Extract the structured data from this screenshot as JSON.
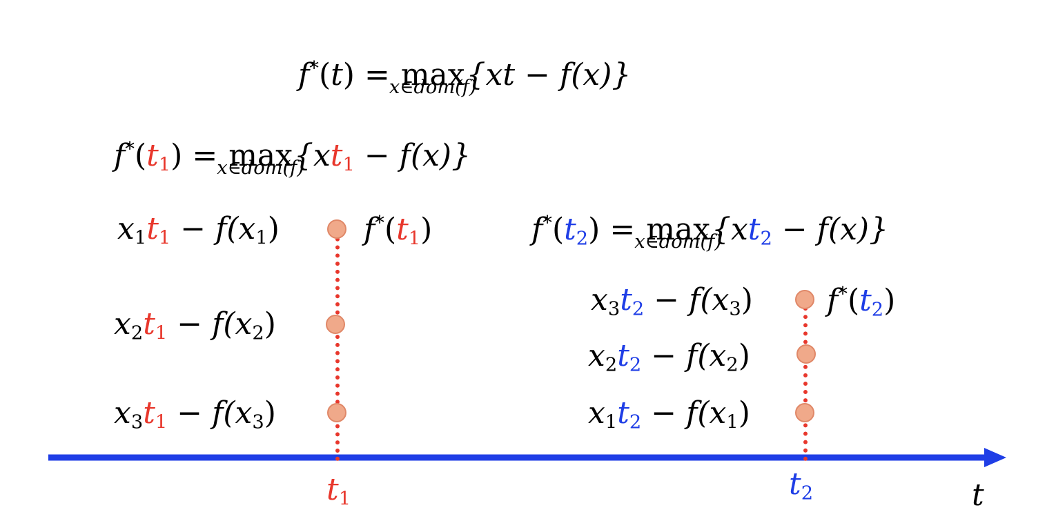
{
  "colors": {
    "red": "#e8372c",
    "blue": "#1f3ee6",
    "dot_fill": "#f0a98a",
    "dot_stroke": "#e08868",
    "axis": "#1f3ee6"
  },
  "main_formula": {
    "lhs": "f",
    "star": "*",
    "arg": "t",
    "eq": "=",
    "op": "max",
    "under": "x∈dom(f)",
    "rhs": "{xt − f(x)}"
  },
  "formula_t1": {
    "lhs": "f",
    "star": "*",
    "var": "t",
    "sub": "1",
    "eq": "=",
    "op": "max",
    "under": "x∈dom(f)",
    "rhs_a": "{x",
    "rhs_b": " − f(x)}"
  },
  "formula_t2": {
    "lhs": "f",
    "star": "*",
    "var": "t",
    "sub": "2",
    "eq": "=",
    "op": "max",
    "under": "x∈dom(f)",
    "rhs_a": "{x",
    "rhs_b": " − f(x)}"
  },
  "t1_labels": [
    {
      "x": "x",
      "xsub": "1",
      "t": "t",
      "tsub": "1",
      "f": " − f(x",
      "close": ")"
    },
    {
      "x": "x",
      "xsub": "2",
      "t": "t",
      "tsub": "1",
      "f": " − f(x",
      "close": ")"
    },
    {
      "x": "x",
      "xsub": "3",
      "t": "t",
      "tsub": "1",
      "f": " − f(x",
      "close": ")"
    }
  ],
  "t2_labels": [
    {
      "x": "x",
      "xsub": "3",
      "t": "t",
      "tsub": "2",
      "f": " − f(x",
      "close": ")"
    },
    {
      "x": "x",
      "xsub": "2",
      "t": "t",
      "tsub": "2",
      "f": " − f(x",
      "close": ")"
    },
    {
      "x": "x",
      "xsub": "1",
      "t": "t",
      "tsub": "2",
      "f": " − f(x",
      "close": ")"
    }
  ],
  "max_label_t1": {
    "f": "f",
    "star": "*",
    "t": "t",
    "sub": "1"
  },
  "max_label_t2": {
    "f": "f",
    "star": "*",
    "t": "t",
    "sub": "2"
  },
  "axis": {
    "tick1": "t",
    "tick1_sub": "1",
    "tick2": "t",
    "tick2_sub": "2",
    "axis_label": "t"
  }
}
